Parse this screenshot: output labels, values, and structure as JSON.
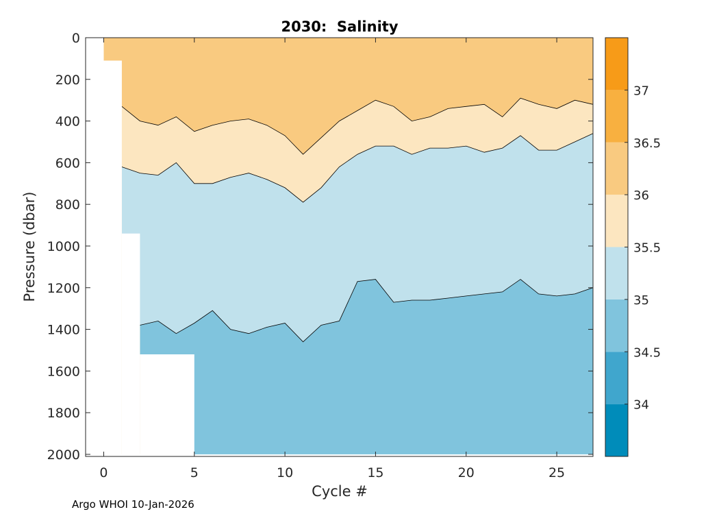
{
  "chart_data": {
    "type": "heatmap",
    "subtype": "filled-contour",
    "title": "2030:  Salinity",
    "xlabel": "Cycle #",
    "ylabel": "Pressure (dbar)",
    "xlim": [
      -1,
      27
    ],
    "ylim": [
      0,
      2010
    ],
    "y_reversed": true,
    "xticks": [
      0,
      5,
      10,
      15,
      20,
      25
    ],
    "yticks": [
      0,
      200,
      400,
      600,
      800,
      1000,
      1200,
      1400,
      1600,
      1800,
      2000
    ],
    "colorbar": {
      "levels": [
        33.5,
        34,
        34.5,
        35,
        35.5,
        36,
        36.5,
        37,
        37.5
      ],
      "tick_labels": [
        "34",
        "34.5",
        "35",
        "35.5",
        "36",
        "36.5",
        "37"
      ],
      "colors": [
        "#008cba",
        "#40a6cd",
        "#80c4dd",
        "#c0e1ec",
        "#fce6c0",
        "#f9ca80",
        "#f8b040",
        "#f79b18"
      ]
    },
    "bands": [
      {
        "range": "35.5-36",
        "color": "#fce6c0",
        "upper_boundary": [
          [
            1,
            330
          ],
          [
            2,
            400
          ],
          [
            3,
            420
          ],
          [
            4,
            380
          ],
          [
            5,
            450
          ],
          [
            6,
            420
          ],
          [
            7,
            400
          ],
          [
            8,
            390
          ],
          [
            9,
            420
          ],
          [
            10,
            470
          ],
          [
            11,
            560
          ],
          [
            12,
            480
          ],
          [
            13,
            400
          ],
          [
            14,
            350
          ],
          [
            15,
            300
          ],
          [
            16,
            330
          ],
          [
            17,
            400
          ],
          [
            18,
            380
          ],
          [
            19,
            340
          ],
          [
            20,
            330
          ],
          [
            21,
            320
          ],
          [
            22,
            380
          ],
          [
            23,
            290
          ],
          [
            24,
            320
          ],
          [
            25,
            340
          ],
          [
            26,
            300
          ],
          [
            27,
            320
          ]
        ],
        "lower_boundary": [
          [
            1,
            620
          ],
          [
            2,
            650
          ],
          [
            3,
            660
          ],
          [
            4,
            600
          ],
          [
            5,
            700
          ],
          [
            6,
            700
          ],
          [
            7,
            670
          ],
          [
            8,
            650
          ],
          [
            9,
            680
          ],
          [
            10,
            720
          ],
          [
            11,
            790
          ],
          [
            12,
            720
          ],
          [
            13,
            620
          ],
          [
            14,
            560
          ],
          [
            15,
            520
          ],
          [
            16,
            520
          ],
          [
            17,
            560
          ],
          [
            18,
            530
          ],
          [
            19,
            530
          ],
          [
            20,
            520
          ],
          [
            21,
            550
          ],
          [
            22,
            530
          ],
          [
            23,
            470
          ],
          [
            24,
            540
          ],
          [
            25,
            540
          ],
          [
            26,
            500
          ],
          [
            27,
            460
          ]
        ]
      },
      {
        "range": "35-35.5",
        "color": "#c0e1ec",
        "upper_boundary_note": "same as 35.5-36 lower boundary",
        "lower_boundary": [
          [
            2,
            1380
          ],
          [
            3,
            1360
          ],
          [
            4,
            1420
          ],
          [
            5,
            1370
          ],
          [
            6,
            1310
          ],
          [
            7,
            1400
          ],
          [
            8,
            1420
          ],
          [
            9,
            1390
          ],
          [
            10,
            1370
          ],
          [
            11,
            1460
          ],
          [
            12,
            1380
          ],
          [
            13,
            1360
          ],
          [
            14,
            1170
          ],
          [
            15,
            1160
          ],
          [
            16,
            1270
          ],
          [
            17,
            1260
          ],
          [
            18,
            1260
          ],
          [
            19,
            1250
          ],
          [
            20,
            1240
          ],
          [
            21,
            1230
          ],
          [
            22,
            1220
          ],
          [
            23,
            1160
          ],
          [
            24,
            1230
          ],
          [
            25,
            1240
          ],
          [
            26,
            1230
          ],
          [
            27,
            1200
          ]
        ]
      },
      {
        "range": "34.5-35",
        "color": "#80c4dd",
        "fills_to": 2000
      }
    ],
    "data_gaps": [
      {
        "cycles": [
          -1,
          1
        ],
        "pressure_from": 110
      },
      {
        "cycles": [
          1,
          2
        ],
        "pressure_from": 940
      },
      {
        "cycles": [
          2,
          5
        ],
        "pressure_from": 1520
      }
    ]
  },
  "footer_text": "Argo WHOI 10-Jan-2026"
}
